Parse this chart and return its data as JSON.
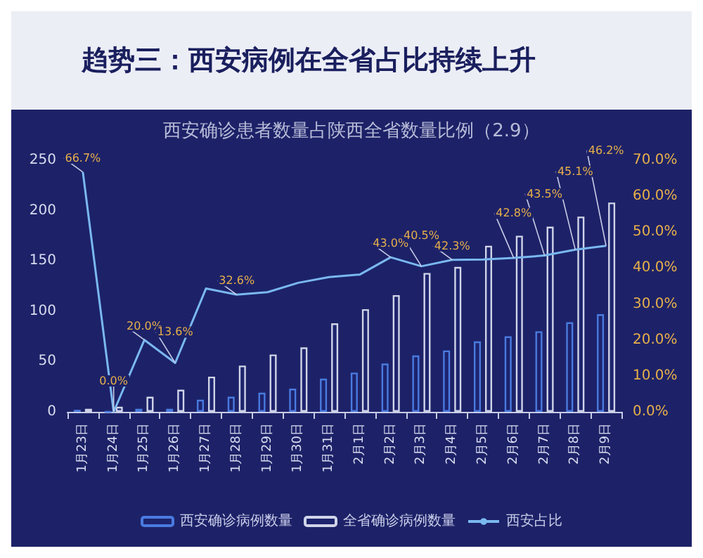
{
  "chart_data": {
    "type": "bar",
    "title": "趋势三：西安病例在全省占比持续上升",
    "subtitle": "西安确诊患者数量占陕西全省数量比例（2.9）",
    "categories": [
      "1月23日",
      "1月24日",
      "1月25日",
      "1月26日",
      "1月27日",
      "1月28日",
      "1月29日",
      "1月30日",
      "1月31日",
      "2月1日",
      "2月2日",
      "2月3日",
      "2月4日",
      "2月5日",
      "2月6日",
      "2月7日",
      "2月8日",
      "2月9日"
    ],
    "series": [
      {
        "name": "西安确诊病例数量",
        "color": "#4a7be0",
        "values": [
          2,
          0,
          3,
          3,
          12,
          15,
          19,
          23,
          33,
          39,
          48,
          56,
          61,
          70,
          75,
          80,
          89,
          97
        ]
      },
      {
        "name": "全省确诊病例数量",
        "color": "#d0d4e8",
        "values": [
          3,
          5,
          15,
          22,
          35,
          46,
          57,
          64,
          88,
          102,
          116,
          138,
          144,
          165,
          175,
          184,
          194,
          208
        ]
      },
      {
        "name": "西安占比",
        "type": "line",
        "axis": "y2",
        "color": "#7ab8f0",
        "values": [
          66.7,
          0,
          20,
          13.6,
          34.3,
          32.6,
          33.3,
          35.9,
          37.5,
          38.2,
          43.0,
          40.5,
          42.3,
          42.4,
          42.8,
          43.5,
          45.1,
          46.2
        ],
        "value_labels": [
          "66.7%",
          "0.0%",
          "20.0%",
          "13.6%",
          null,
          "32.6%",
          null,
          null,
          null,
          null,
          "43.0%",
          "40.5%",
          "42.3%",
          null,
          "42.8%",
          "43.5%",
          "45.1%",
          "46.2%"
        ]
      }
    ],
    "ylim": [
      0,
      250
    ],
    "yticks": [
      0,
      50,
      100,
      150,
      200,
      250
    ],
    "y2lim": [
      0,
      70
    ],
    "y2ticks": [
      {
        "value": 0,
        "label": "0.0%"
      },
      {
        "value": 10,
        "label": "10.0%"
      },
      {
        "value": 20,
        "label": "20.0%"
      },
      {
        "value": 30,
        "label": "30.0%"
      },
      {
        "value": 40,
        "label": "40.0%"
      },
      {
        "value": 50,
        "label": "50.0%"
      },
      {
        "value": 60,
        "label": "60.0%"
      },
      {
        "value": 70,
        "label": "70.0%"
      }
    ],
    "grid": false,
    "legend": "bottom",
    "marker": "none",
    "line_style": "solid"
  }
}
